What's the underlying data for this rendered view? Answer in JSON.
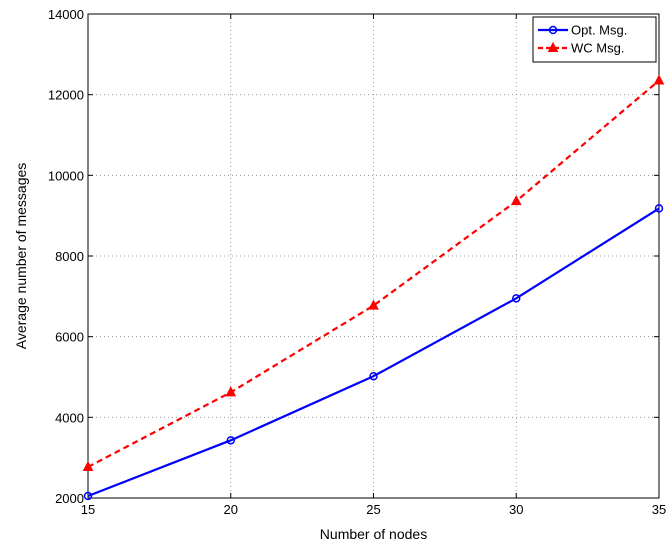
{
  "chart_data": {
    "type": "line",
    "title": "",
    "xlabel": "Number of nodes",
    "ylabel": "Average number of messages",
    "x": [
      15,
      20,
      25,
      30,
      35
    ],
    "xlim": [
      15,
      35
    ],
    "ylim": [
      2000,
      14000
    ],
    "xticks": [
      "15",
      "20",
      "25",
      "30",
      "35"
    ],
    "yticks": [
      "2000",
      "4000",
      "6000",
      "8000",
      "10000",
      "12000",
      "14000"
    ],
    "grid": true,
    "legend_position": "top-right",
    "series": [
      {
        "name": "Opt. Msg.",
        "values": [
          2050,
          3430,
          5020,
          6950,
          9180
        ],
        "color": "#0000ff",
        "line_style": "solid",
        "marker": "circle"
      },
      {
        "name": "WC Msg.",
        "values": [
          2770,
          4620,
          6770,
          9360,
          12350
        ],
        "color": "#ff0000",
        "line_style": "dashed",
        "marker": "triangle"
      }
    ]
  }
}
